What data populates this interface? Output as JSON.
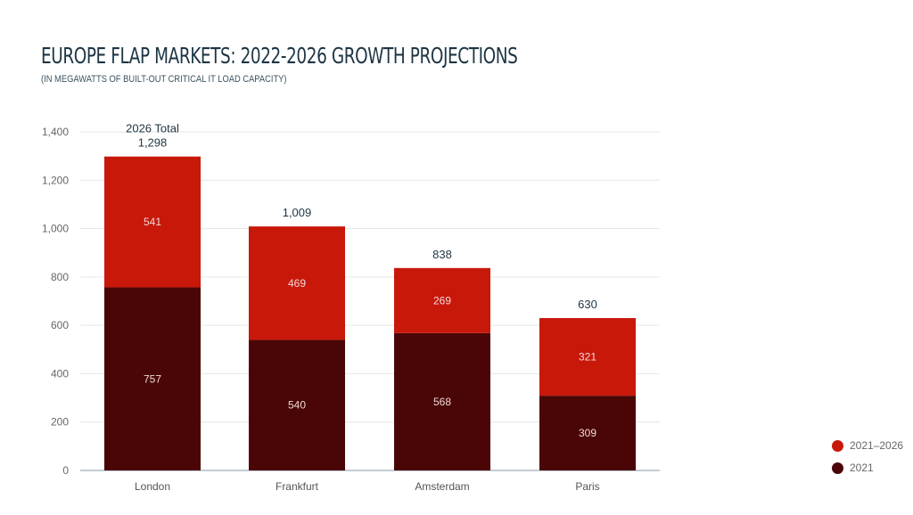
{
  "chart_data": {
    "type": "bar",
    "stacked": true,
    "title": "EUROPE FLAP MARKETS: 2022-2026 GROWTH PROJECTIONS",
    "subtitle": "(IN MEGAWATTS OF BUILT-OUT CRITICAL IT LOAD CAPACITY)",
    "categories": [
      "London",
      "Frankfurt",
      "Amsterdam",
      "Paris"
    ],
    "series": [
      {
        "name": "2021",
        "color": "#4a0606",
        "values": [
          757,
          540,
          568,
          309
        ]
      },
      {
        "name": "2021–2026",
        "color": "#c8180a",
        "values": [
          541,
          469,
          269,
          321
        ]
      }
    ],
    "totals": [
      "1,298",
      "1,009",
      "838",
      "630"
    ],
    "total_annotation": "2026 Total",
    "ylim": [
      0,
      1400
    ],
    "yticks": [
      "0",
      "200",
      "400",
      "600",
      "800",
      "1,000",
      "1,200",
      "1,400"
    ],
    "ytick_values": [
      0,
      200,
      400,
      600,
      800,
      1000,
      1200,
      1400
    ],
    "grid": true,
    "legend_position": "bottom-right",
    "xlabel": "",
    "ylabel": ""
  }
}
